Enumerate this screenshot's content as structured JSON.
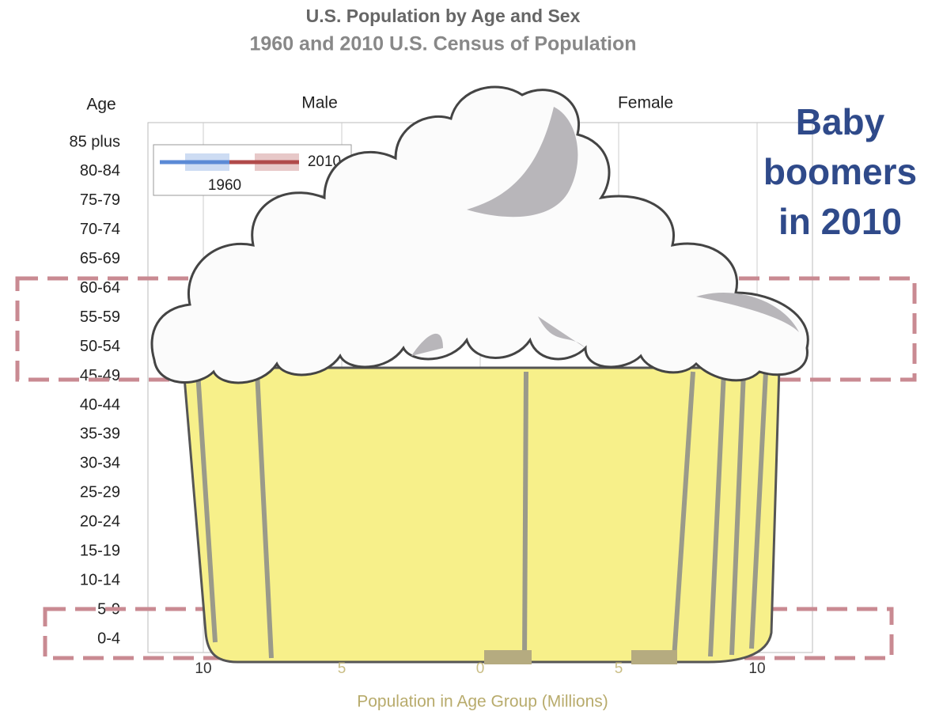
{
  "chart_data": {
    "type": "pyramid",
    "title": "U.S. Population by Age and Sex",
    "subtitle": "1960 and 2010 U.S. Census of Population",
    "y_label": "Age",
    "left_header": "Male",
    "right_header": "Female",
    "x_label": "Population in Age Group (Millions)",
    "categories": [
      "85 plus",
      "80-84",
      "75-79",
      "70-74",
      "65-69",
      "60-64",
      "55-59",
      "50-54",
      "45-49",
      "40-44",
      "35-39",
      "30-34",
      "25-29",
      "20-24",
      "15-19",
      "10-14",
      "5-9",
      "0-4"
    ],
    "legend": [
      {
        "name": "1960",
        "color": "#5b8ad6"
      },
      {
        "name": "2010",
        "color": "#b04a4a"
      }
    ],
    "xlim": [
      -12,
      12
    ],
    "xticks": [
      {
        "value": -10,
        "label": "10"
      },
      {
        "value": -5,
        "label": "5"
      },
      0,
      5,
      10
    ],
    "grid": true,
    "annotation": [
      "Baby",
      "boomers",
      "in 2010"
    ]
  }
}
